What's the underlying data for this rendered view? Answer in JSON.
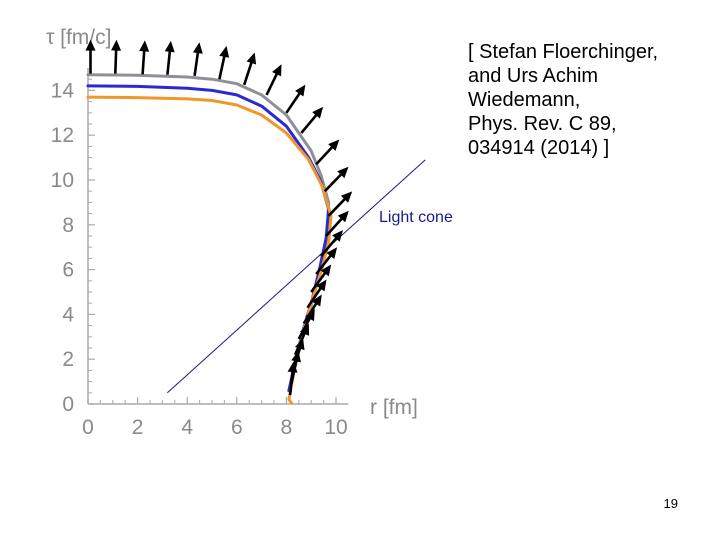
{
  "citation": {
    "lines": [
      "[ Stefan Floerchinger,",
      "and Urs Achim",
      "Wiedemann,",
      "Phys. Rev. C 89,",
      "034914 (2014) ]"
    ]
  },
  "slide_number": "19",
  "colors": {
    "gray_curve": "#8f8f98",
    "blue_curve": "#2a2ad0",
    "orange_curve": "#f0962a",
    "arrows": "#000000",
    "light_cone": "#1a1a8a",
    "axes": "#aaaaaa"
  },
  "chart_data": {
    "type": "line",
    "xlabel": "r [fm]",
    "ylabel": "τ [fm/c]",
    "xlim": [
      0,
      10.5
    ],
    "ylim": [
      0,
      15
    ],
    "x_ticks": [
      "0",
      "2",
      "4",
      "6",
      "8",
      "10"
    ],
    "y_ticks": [
      "0",
      "2",
      "4",
      "6",
      "8",
      "10",
      "12",
      "14"
    ],
    "series": [
      {
        "color_key": "gray_curve",
        "points": [
          [
            0,
            14.7
          ],
          [
            2,
            14.68
          ],
          [
            4,
            14.6
          ],
          [
            5,
            14.5
          ],
          [
            6,
            14.3
          ],
          [
            7,
            13.8
          ],
          [
            8,
            12.9
          ],
          [
            9,
            11.3
          ],
          [
            9.4,
            10.2
          ],
          [
            9.7,
            9
          ],
          [
            9.65,
            7.5
          ],
          [
            9.4,
            6.2
          ],
          [
            9.1,
            4.8
          ],
          [
            8.7,
            3.2
          ],
          [
            8.35,
            1.7
          ],
          [
            8.1,
            0.6
          ]
        ]
      },
      {
        "color_key": "blue_curve",
        "points": [
          [
            0,
            14.2
          ],
          [
            2,
            14.18
          ],
          [
            4,
            14.1
          ],
          [
            5,
            14.0
          ],
          [
            6,
            13.8
          ],
          [
            7,
            13.3
          ],
          [
            8,
            12.4
          ],
          [
            8.9,
            11
          ],
          [
            9.4,
            9.9
          ],
          [
            9.7,
            8.7
          ],
          [
            9.6,
            7.4
          ],
          [
            9.35,
            6.1
          ],
          [
            9.05,
            4.7
          ],
          [
            8.65,
            3.2
          ],
          [
            8.3,
            1.6
          ],
          [
            8.1,
            0.6
          ]
        ]
      },
      {
        "color_key": "orange_curve",
        "points": [
          [
            0,
            13.7
          ],
          [
            2,
            13.68
          ],
          [
            4,
            13.62
          ],
          [
            5,
            13.55
          ],
          [
            6,
            13.35
          ],
          [
            7,
            12.9
          ],
          [
            8,
            12.1
          ],
          [
            8.9,
            10.9
          ],
          [
            9.45,
            9.7
          ],
          [
            9.8,
            8.4
          ],
          [
            9.7,
            7.2
          ],
          [
            9.4,
            5.9
          ],
          [
            9.0,
            4.5
          ],
          [
            8.6,
            2.9
          ],
          [
            8.3,
            1.4
          ],
          [
            8.1,
            0.2
          ],
          [
            8.2,
            0.05
          ]
        ]
      }
    ],
    "arrows": [
      {
        "x": 0.1,
        "y": 14.75,
        "angle": 90
      },
      {
        "x": 1.1,
        "y": 14.75,
        "angle": 88
      },
      {
        "x": 2.2,
        "y": 14.72,
        "angle": 86
      },
      {
        "x": 3.2,
        "y": 14.7,
        "angle": 84
      },
      {
        "x": 4.3,
        "y": 14.65,
        "angle": 82
      },
      {
        "x": 5.3,
        "y": 14.5,
        "angle": 78
      },
      {
        "x": 6.3,
        "y": 14.25,
        "angle": 72
      },
      {
        "x": 7.2,
        "y": 13.8,
        "angle": 64
      },
      {
        "x": 8.0,
        "y": 13.0,
        "angle": 56
      },
      {
        "x": 8.6,
        "y": 12.1,
        "angle": 50
      },
      {
        "x": 9.2,
        "y": 10.7,
        "angle": 47
      },
      {
        "x": 9.55,
        "y": 9.5,
        "angle": 46
      },
      {
        "x": 9.7,
        "y": 8.4,
        "angle": 46
      },
      {
        "x": 9.6,
        "y": 7.5,
        "angle": 48
      },
      {
        "x": 9.4,
        "y": 6.6,
        "angle": 50
      },
      {
        "x": 9.2,
        "y": 5.8,
        "angle": 52
      },
      {
        "x": 9.0,
        "y": 5.0,
        "angle": 54
      },
      {
        "x": 8.85,
        "y": 4.3,
        "angle": 56
      },
      {
        "x": 8.7,
        "y": 3.6,
        "angle": 58
      },
      {
        "x": 8.5,
        "y": 2.9,
        "angle": 62
      },
      {
        "x": 8.35,
        "y": 2.2,
        "angle": 66
      },
      {
        "x": 8.25,
        "y": 1.5,
        "angle": 72
      },
      {
        "x": 8.2,
        "y": 0.9,
        "angle": 78
      },
      {
        "x": 8.15,
        "y": 0.4,
        "angle": 84
      }
    ],
    "light_cone": {
      "label": "Light cone",
      "from": [
        3.2,
        0.5
      ],
      "to": [
        13.6,
        10.9
      ]
    }
  }
}
